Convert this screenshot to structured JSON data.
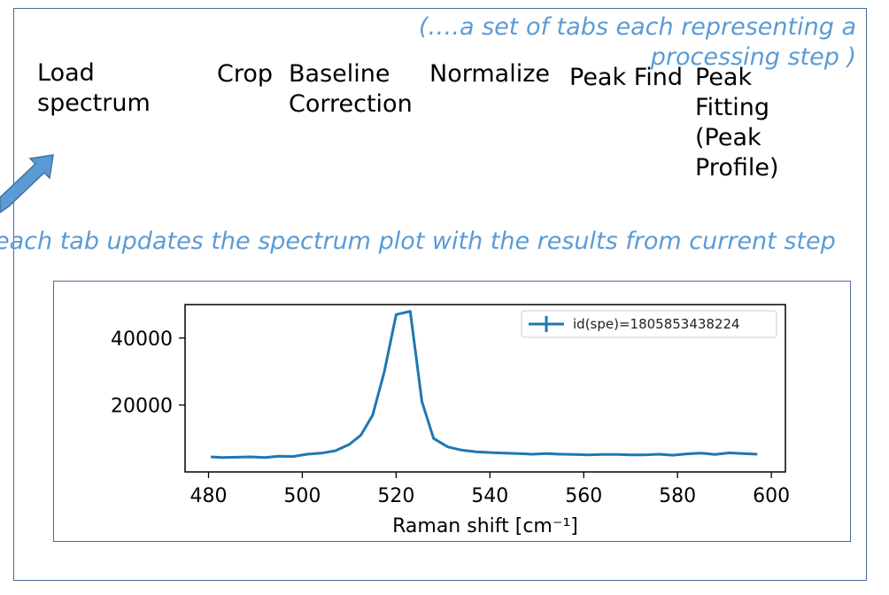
{
  "notes": {
    "tabs_note": "(….a set of tabs each representing a processing step )",
    "plot_note": "each tab updates the spectrum plot with the results from current step"
  },
  "tabs": [
    {
      "label": "Load spectrum"
    },
    {
      "label": "Crop"
    },
    {
      "label": "Baseline Correction"
    },
    {
      "label": "Normalize"
    },
    {
      "label": "Peak Find"
    },
    {
      "label": "Peak Fitting (Peak Profile)"
    }
  ],
  "colors": {
    "annotation": "#5b9bd5",
    "frame": "#4a6d99",
    "series": "#1f77b4",
    "arrow": "#5b9bd5"
  },
  "chart_data": {
    "type": "line",
    "xlabel": "Raman shift [cm⁻¹]",
    "ylabel": "",
    "xlim": [
      475,
      603
    ],
    "ylim": [
      0,
      50000
    ],
    "xticks": [
      480,
      500,
      520,
      540,
      560,
      580,
      600
    ],
    "yticks": [
      20000,
      40000
    ],
    "legend": "top-right",
    "series": [
      {
        "name": "id(spe)=1805853438224",
        "x": [
          480.5,
          483,
          486,
          489,
          492,
          495,
          498,
          501,
          504,
          507,
          510,
          512.5,
          515,
          517.5,
          520,
          523,
          525.5,
          528,
          531,
          534,
          537,
          540,
          543,
          546,
          549,
          552,
          555,
          558,
          561,
          564,
          567,
          570,
          573,
          576,
          579,
          582,
          585,
          588,
          591,
          594,
          597
        ],
        "y": [
          4500,
          4300,
          4400,
          4500,
          4300,
          4700,
          4600,
          5300,
          5600,
          6300,
          8200,
          11000,
          17000,
          30000,
          47000,
          48000,
          21000,
          10000,
          7500,
          6500,
          6000,
          5800,
          5600,
          5500,
          5300,
          5500,
          5300,
          5200,
          5100,
          5200,
          5200,
          5100,
          5100,
          5300,
          5000,
          5400,
          5600,
          5200,
          5700,
          5500,
          5300
        ]
      }
    ]
  }
}
